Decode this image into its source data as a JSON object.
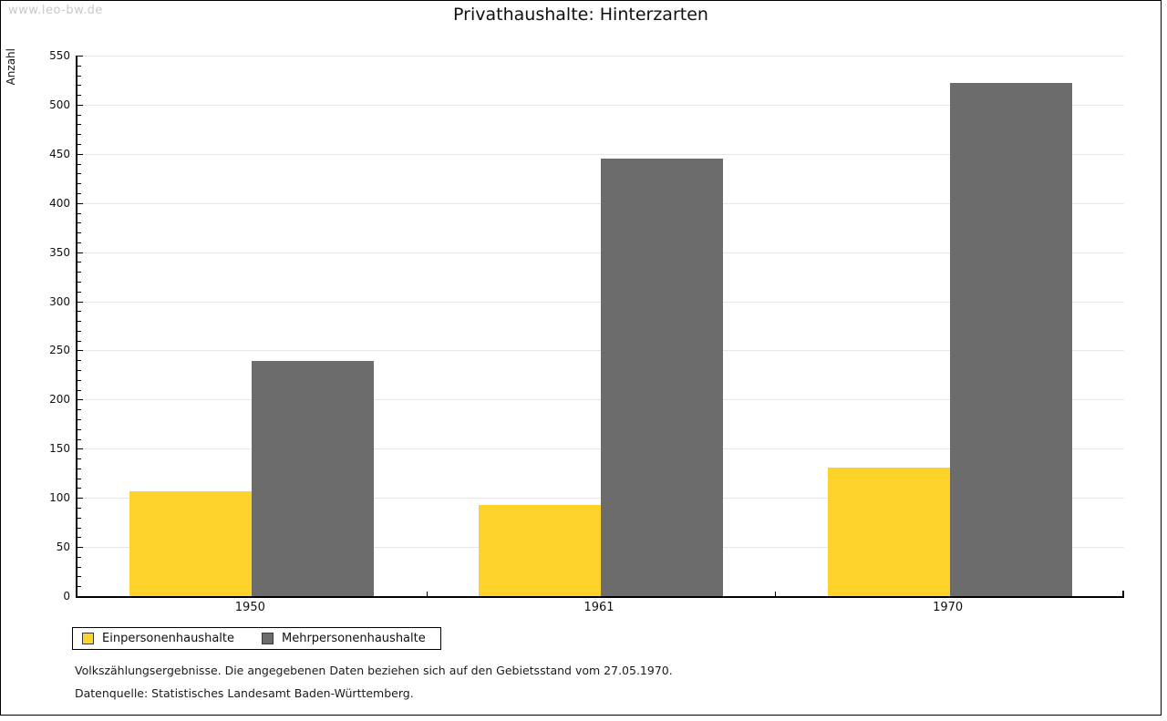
{
  "watermark": "www.leo-bw.de",
  "title": "Privathaushalte: Hinterzarten",
  "chart_data": {
    "type": "bar",
    "title": "Privathaushalte: Hinterzarten",
    "categories": [
      "1950",
      "1961",
      "1970"
    ],
    "series": [
      {
        "name": "Einpersonenhaushalte",
        "color": "#FCD22B",
        "values": [
          107,
          93,
          131
        ]
      },
      {
        "name": "Mehrpersonenhaushalte",
        "color": "#6C6C6C",
        "values": [
          239,
          445,
          522
        ]
      }
    ],
    "xlabel": "",
    "ylabel": "Anzahl",
    "ylim": [
      0,
      550
    ],
    "ytick_step": 50,
    "yminor_step": 10,
    "grid": true,
    "legend_position": "bottom-left",
    "gridline_color": "#e7e7e7"
  },
  "footnotes": {
    "line1": "Volkszählungsergebnisse. Die angegebenen Daten beziehen sich auf den Gebietsstand vom 27.05.1970.",
    "line2": "Datenquelle: Statistisches Landesamt Baden-Württemberg."
  }
}
